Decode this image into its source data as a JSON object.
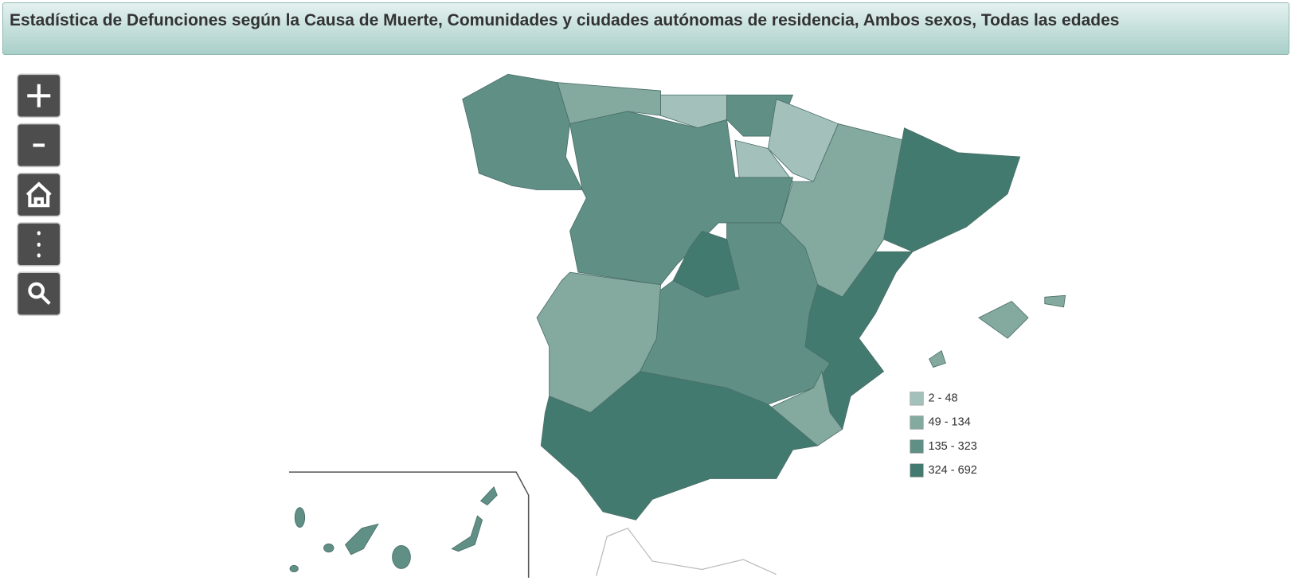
{
  "header": {
    "title": "Estadística de Defunciones según la Causa de Muerte, Comunidades y ciudades autónomas de residencia, Ambos sexos, Todas las edades"
  },
  "legend": {
    "items": [
      {
        "label": "2 - 48",
        "color": "#a3c1ba"
      },
      {
        "label": "49 - 134",
        "color": "#84a99f"
      },
      {
        "label": "135 - 323",
        "color": "#5f8f85"
      },
      {
        "label": "324 - 692",
        "color": "#437a70"
      }
    ]
  }
}
